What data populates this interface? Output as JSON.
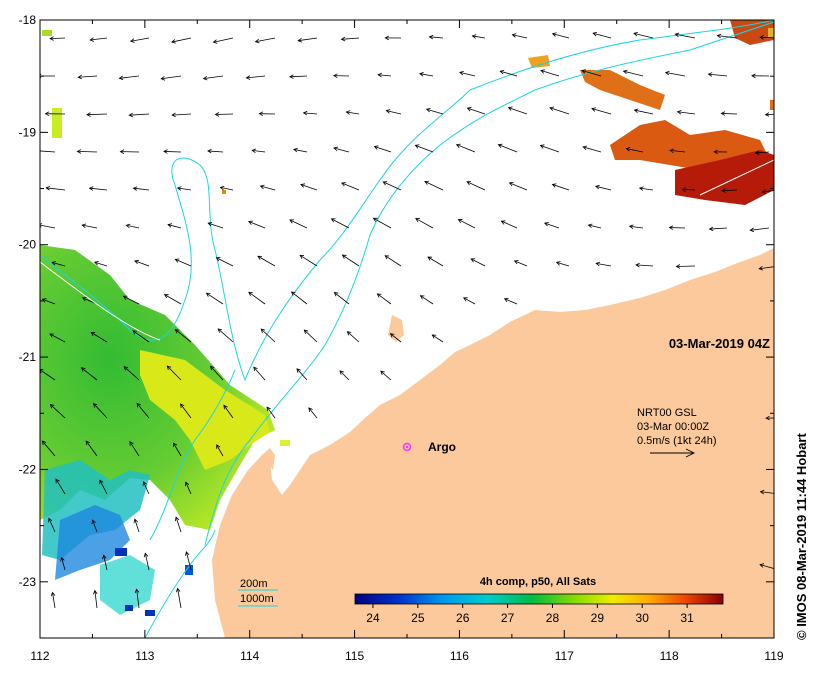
{
  "map": {
    "axes": {
      "lon_range": [
        112,
        119
      ],
      "lat_range": [
        -23.5,
        -18
      ],
      "lon_ticks": [
        "112",
        "113",
        "114",
        "115",
        "116",
        "117",
        "118",
        "119"
      ],
      "lat_ticks": [
        "-18",
        "-19",
        "-20",
        "-21",
        "-22",
        "-23"
      ]
    },
    "timestamp": "03-Mar-2019 04Z",
    "current_info": {
      "line1": "NRT00 GSL",
      "line2": "03-Mar 00:00Z",
      "line3": "0.5m/s (1kt 24h)"
    },
    "argo_label": "Argo",
    "argo_position": {
      "lon": 115.5,
      "lat": -21.8
    },
    "isobath_legend": {
      "shallow": "200m",
      "deep": "1000m"
    },
    "colorbar": {
      "title": "4h comp, p50, All Sats",
      "range": [
        23.6,
        31.8
      ],
      "ticks": [
        "24",
        "25",
        "26",
        "27",
        "28",
        "29",
        "30",
        "31"
      ]
    },
    "credit": "© IMOS 08-Mar-2019 11:44 Hobart",
    "colors": {
      "land": "#fbc99b",
      "isobath": "#1bd6e0",
      "argo_marker": "#ff33ff"
    }
  }
}
